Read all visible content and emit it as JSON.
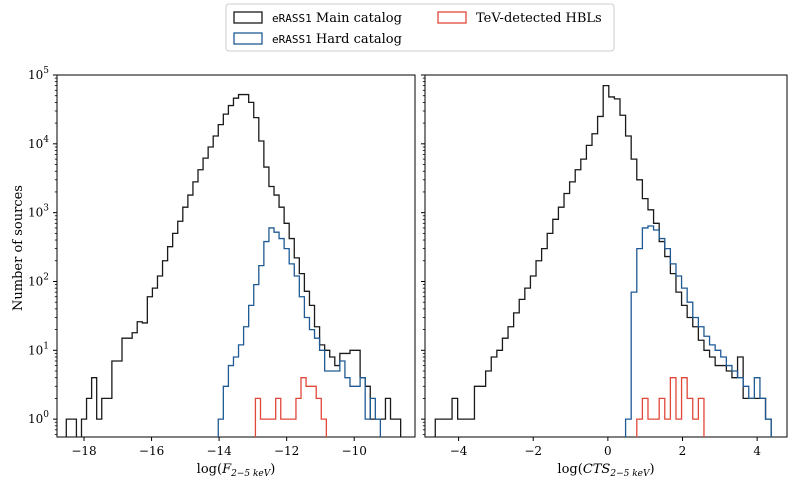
{
  "colors": {
    "main": "#1a1a1a",
    "hard": "#1f5a94",
    "tev": "#e0483a"
  },
  "legend": {
    "main_mono": "eRASS1",
    "main_rest": " Main catalog",
    "hard_mono": "eRASS1",
    "hard_rest": " Hard catalog",
    "tev": "TeV-detected HBLs"
  },
  "ylabel": "Number of sources",
  "chart_data": [
    {
      "type": "histogram-step",
      "xlabel": "log(F_{2-5 keV})",
      "xlabel_main": "log(",
      "xlabel_var": "F",
      "xlabel_sub": "2−5 keV",
      "xlabel_close": ")",
      "xlim": [
        -18.8,
        -8.2
      ],
      "ylim": [
        0.55,
        100000
      ],
      "yscale": "log",
      "xticks": [
        -18,
        -16,
        -14,
        -12,
        -10
      ],
      "xtick_labels": [
        "−18",
        "−16",
        "−14",
        "−12",
        "−10"
      ],
      "series": [
        {
          "name": "eRASS1 Main catalog",
          "color": "#1a1a1a",
          "x": [
            -18.45,
            -18.3,
            -18.15,
            -18.0,
            -17.85,
            -17.7,
            -17.55,
            -17.4,
            -17.25,
            -17.1,
            -16.95,
            -16.8,
            -16.65,
            -16.5,
            -16.35,
            -16.2,
            -16.05,
            -15.9,
            -15.75,
            -15.6,
            -15.45,
            -15.3,
            -15.15,
            -15.0,
            -14.85,
            -14.7,
            -14.55,
            -14.4,
            -14.25,
            -14.1,
            -13.95,
            -13.8,
            -13.65,
            -13.5,
            -13.35,
            -13.2,
            -13.05,
            -12.9,
            -12.75,
            -12.6,
            -12.45,
            -12.3,
            -12.15,
            -12.0,
            -11.85,
            -11.7,
            -11.55,
            -11.4,
            -11.25,
            -11.1,
            -10.95,
            -10.8,
            -10.65,
            -10.5,
            -10.35,
            -10.2,
            -10.05,
            -9.9,
            -9.75,
            -9.6,
            -9.45,
            -9.3,
            -9.15,
            -9.0,
            -8.85,
            -8.7,
            -8.55
          ],
          "values": [
            1,
            1,
            0,
            1,
            2,
            4,
            1,
            2,
            2,
            7,
            7,
            15,
            15,
            18,
            26,
            25,
            60,
            80,
            120,
            200,
            320,
            500,
            750,
            1200,
            1800,
            2800,
            4200,
            6200,
            9000,
            13000,
            19000,
            27000,
            36000,
            46000,
            52000,
            52000,
            40000,
            24000,
            11000,
            4600,
            2400,
            1800,
            1200,
            700,
            420,
            220,
            130,
            72,
            45,
            22,
            12,
            10,
            8,
            6,
            9,
            9,
            10,
            10,
            4,
            3,
            1,
            1,
            1,
            2,
            1,
            1,
            0
          ]
        },
        {
          "name": "eRASS1 Hard catalog",
          "color": "#1f5a94",
          "x": [
            -13.95,
            -13.8,
            -13.65,
            -13.5,
            -13.35,
            -13.2,
            -13.05,
            -12.9,
            -12.75,
            -12.6,
            -12.45,
            -12.3,
            -12.15,
            -12.0,
            -11.85,
            -11.7,
            -11.55,
            -11.4,
            -11.25,
            -11.1,
            -10.95,
            -10.8,
            -10.65,
            -10.5,
            -10.35,
            -10.2,
            -10.05,
            -9.9,
            -9.75,
            -9.6,
            -9.45,
            -9.3,
            -9.15
          ],
          "values": [
            1,
            3,
            6,
            8,
            12,
            22,
            45,
            90,
            170,
            380,
            600,
            520,
            420,
            300,
            180,
            120,
            60,
            30,
            20,
            15,
            10,
            5,
            5,
            5,
            7,
            4,
            3,
            3,
            4,
            1,
            2,
            1,
            0
          ]
        },
        {
          "name": "TeV-detected HBLs",
          "color": "#e0483a",
          "x": [
            -12.85,
            -12.7,
            -12.55,
            -12.4,
            -12.25,
            -12.1,
            -11.95,
            -11.8,
            -11.65,
            -11.5,
            -11.35,
            -11.2,
            -11.05,
            -10.9,
            -10.75
          ],
          "values": [
            2,
            1,
            1,
            1,
            2,
            1,
            1,
            1,
            2,
            4,
            3,
            3,
            2,
            1,
            0
          ]
        }
      ]
    },
    {
      "type": "histogram-step",
      "xlabel": "log(CTS_{2-5 keV})",
      "xlabel_main": "log(",
      "xlabel_var": "CTS",
      "xlabel_sub": "2−5 keV",
      "xlabel_close": ")",
      "xlim": [
        -4.9,
        4.8
      ],
      "ylim": [
        0.55,
        100000
      ],
      "yscale": "log",
      "xticks": [
        -4,
        -2,
        0,
        2,
        4
      ],
      "xtick_labels": [
        "−4",
        "−2",
        "0",
        "2",
        "4"
      ],
      "series": [
        {
          "name": "eRASS1 Main catalog",
          "color": "#1a1a1a",
          "x": [
            -4.55,
            -4.4,
            -4.25,
            -4.1,
            -3.95,
            -3.8,
            -3.65,
            -3.5,
            -3.35,
            -3.2,
            -3.05,
            -2.9,
            -2.75,
            -2.6,
            -2.45,
            -2.3,
            -2.15,
            -2.0,
            -1.85,
            -1.7,
            -1.55,
            -1.4,
            -1.25,
            -1.1,
            -0.95,
            -0.8,
            -0.65,
            -0.5,
            -0.35,
            -0.2,
            -0.05,
            0.1,
            0.25,
            0.4,
            0.55,
            0.7,
            0.85,
            1.0,
            1.15,
            1.3,
            1.45,
            1.6,
            1.75,
            1.9,
            2.05,
            2.2,
            2.35,
            2.5,
            2.65,
            2.8,
            2.95,
            3.1,
            3.25,
            3.4,
            3.55,
            3.7,
            3.85,
            4.0,
            4.15,
            4.3
          ],
          "values": [
            1,
            1,
            1,
            2,
            1,
            1,
            1,
            3,
            3,
            5,
            8,
            10,
            15,
            22,
            35,
            55,
            80,
            120,
            200,
            300,
            500,
            800,
            1200,
            1900,
            2800,
            4200,
            6000,
            9500,
            14000,
            25000,
            70000,
            48000,
            45000,
            26000,
            13000,
            6000,
            3000,
            1600,
            1100,
            700,
            380,
            230,
            130,
            70,
            45,
            30,
            22,
            14,
            10,
            8,
            6,
            6,
            5,
            4,
            8,
            2,
            2,
            2,
            2,
            1
          ]
        },
        {
          "name": "eRASS1 Hard catalog",
          "color": "#1f5a94",
          "x": [
            0.55,
            0.7,
            0.85,
            1.0,
            1.15,
            1.3,
            1.45,
            1.6,
            1.75,
            1.9,
            2.05,
            2.2,
            2.35,
            2.5,
            2.65,
            2.8,
            2.95,
            3.1,
            3.25,
            3.4,
            3.55,
            3.7,
            3.85,
            4.0,
            4.15,
            4.3
          ],
          "values": [
            1,
            70,
            300,
            600,
            640,
            560,
            420,
            300,
            180,
            120,
            80,
            50,
            30,
            22,
            16,
            12,
            10,
            8,
            6,
            5,
            4,
            3,
            2,
            4,
            2,
            1
          ]
        },
        {
          "name": "TeV-detected HBLs",
          "color": "#e0483a",
          "x": [
            0.85,
            1.0,
            1.15,
            1.3,
            1.45,
            1.6,
            1.75,
            1.9,
            2.05,
            2.2,
            2.35,
            2.5
          ],
          "values": [
            1,
            2,
            1,
            1,
            2,
            1,
            4,
            1,
            4,
            2,
            1,
            2
          ]
        }
      ]
    }
  ]
}
